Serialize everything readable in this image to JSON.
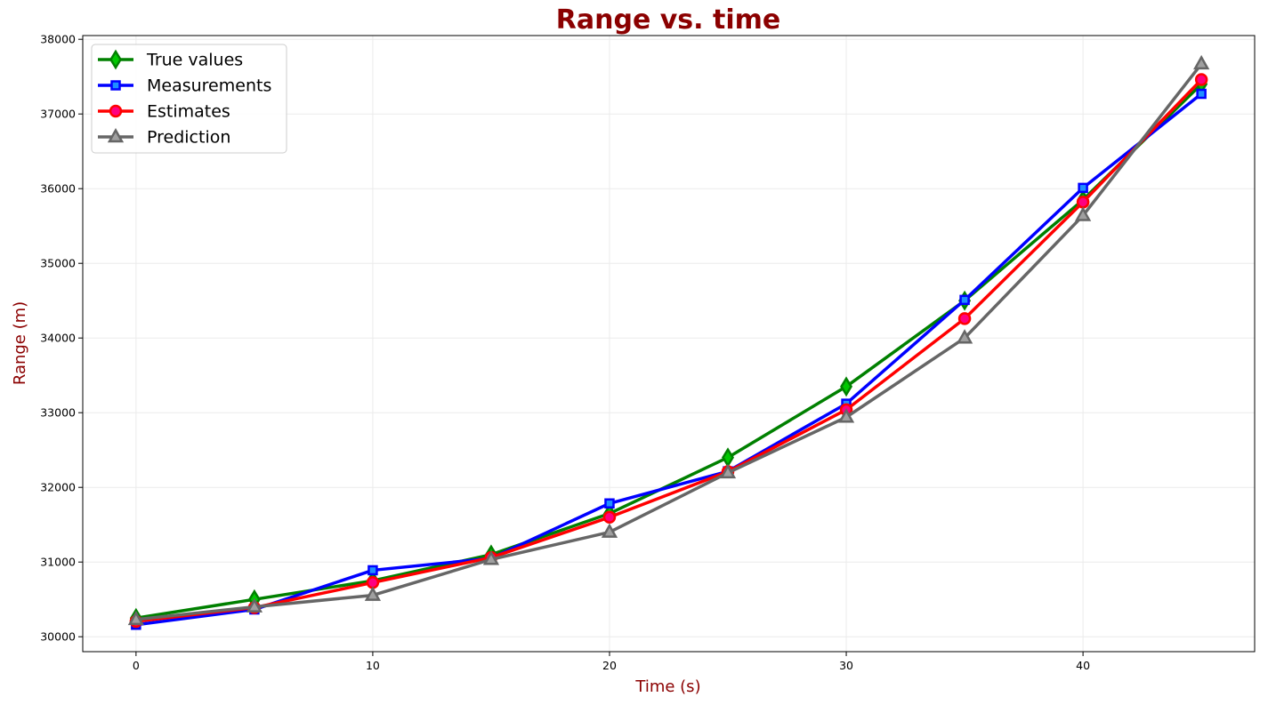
{
  "chart_data": {
    "type": "line",
    "title": "Range vs. time",
    "xlabel": "Time (s)",
    "ylabel": "Range (m)",
    "xlim": [
      -2.25,
      47.25
    ],
    "ylim": [
      29800,
      38050
    ],
    "xticks": [
      0,
      10,
      20,
      30,
      40
    ],
    "yticks": [
      30000,
      31000,
      32000,
      33000,
      34000,
      35000,
      36000,
      37000,
      38000
    ],
    "grid": true,
    "legend_position": "upper-left",
    "x": [
      0,
      5,
      10,
      15,
      20,
      25,
      30,
      35,
      40,
      45
    ],
    "series": [
      {
        "name": "True values",
        "values": [
          30250,
          30500,
          30750,
          31100,
          31650,
          32400,
          33350,
          34500,
          35850,
          37400
        ],
        "line_color": "#008000",
        "marker": "thin_diamond",
        "marker_fill": "#00c800",
        "marker_edge": "#008000"
      },
      {
        "name": "Measurements",
        "values": [
          30160,
          30365,
          30890,
          31050,
          31785,
          32215,
          33120,
          34510,
          36010,
          37270
        ],
        "line_color": "#0000ff",
        "marker": "square",
        "marker_fill": "#1e90ff",
        "marker_edge": "#0000ff"
      },
      {
        "name": "Estimates",
        "values": [
          30205,
          30390,
          30725,
          31060,
          31600,
          32210,
          33040,
          34260,
          35820,
          37460
        ],
        "line_color": "#ff0000",
        "marker": "circle",
        "marker_fill": "#ff0080",
        "marker_edge": "#ff0000"
      },
      {
        "name": "Prediction",
        "values": [
          30230,
          30400,
          30555,
          31035,
          31400,
          32195,
          32940,
          34000,
          35640,
          37670
        ],
        "line_color": "#666666",
        "marker": "triangle",
        "marker_fill": "#a0a0a0",
        "marker_edge": "#666666"
      }
    ],
    "colors": {
      "title": "#8b0000",
      "axis_label": "#8b0000",
      "grid": "#ebebeb"
    }
  }
}
